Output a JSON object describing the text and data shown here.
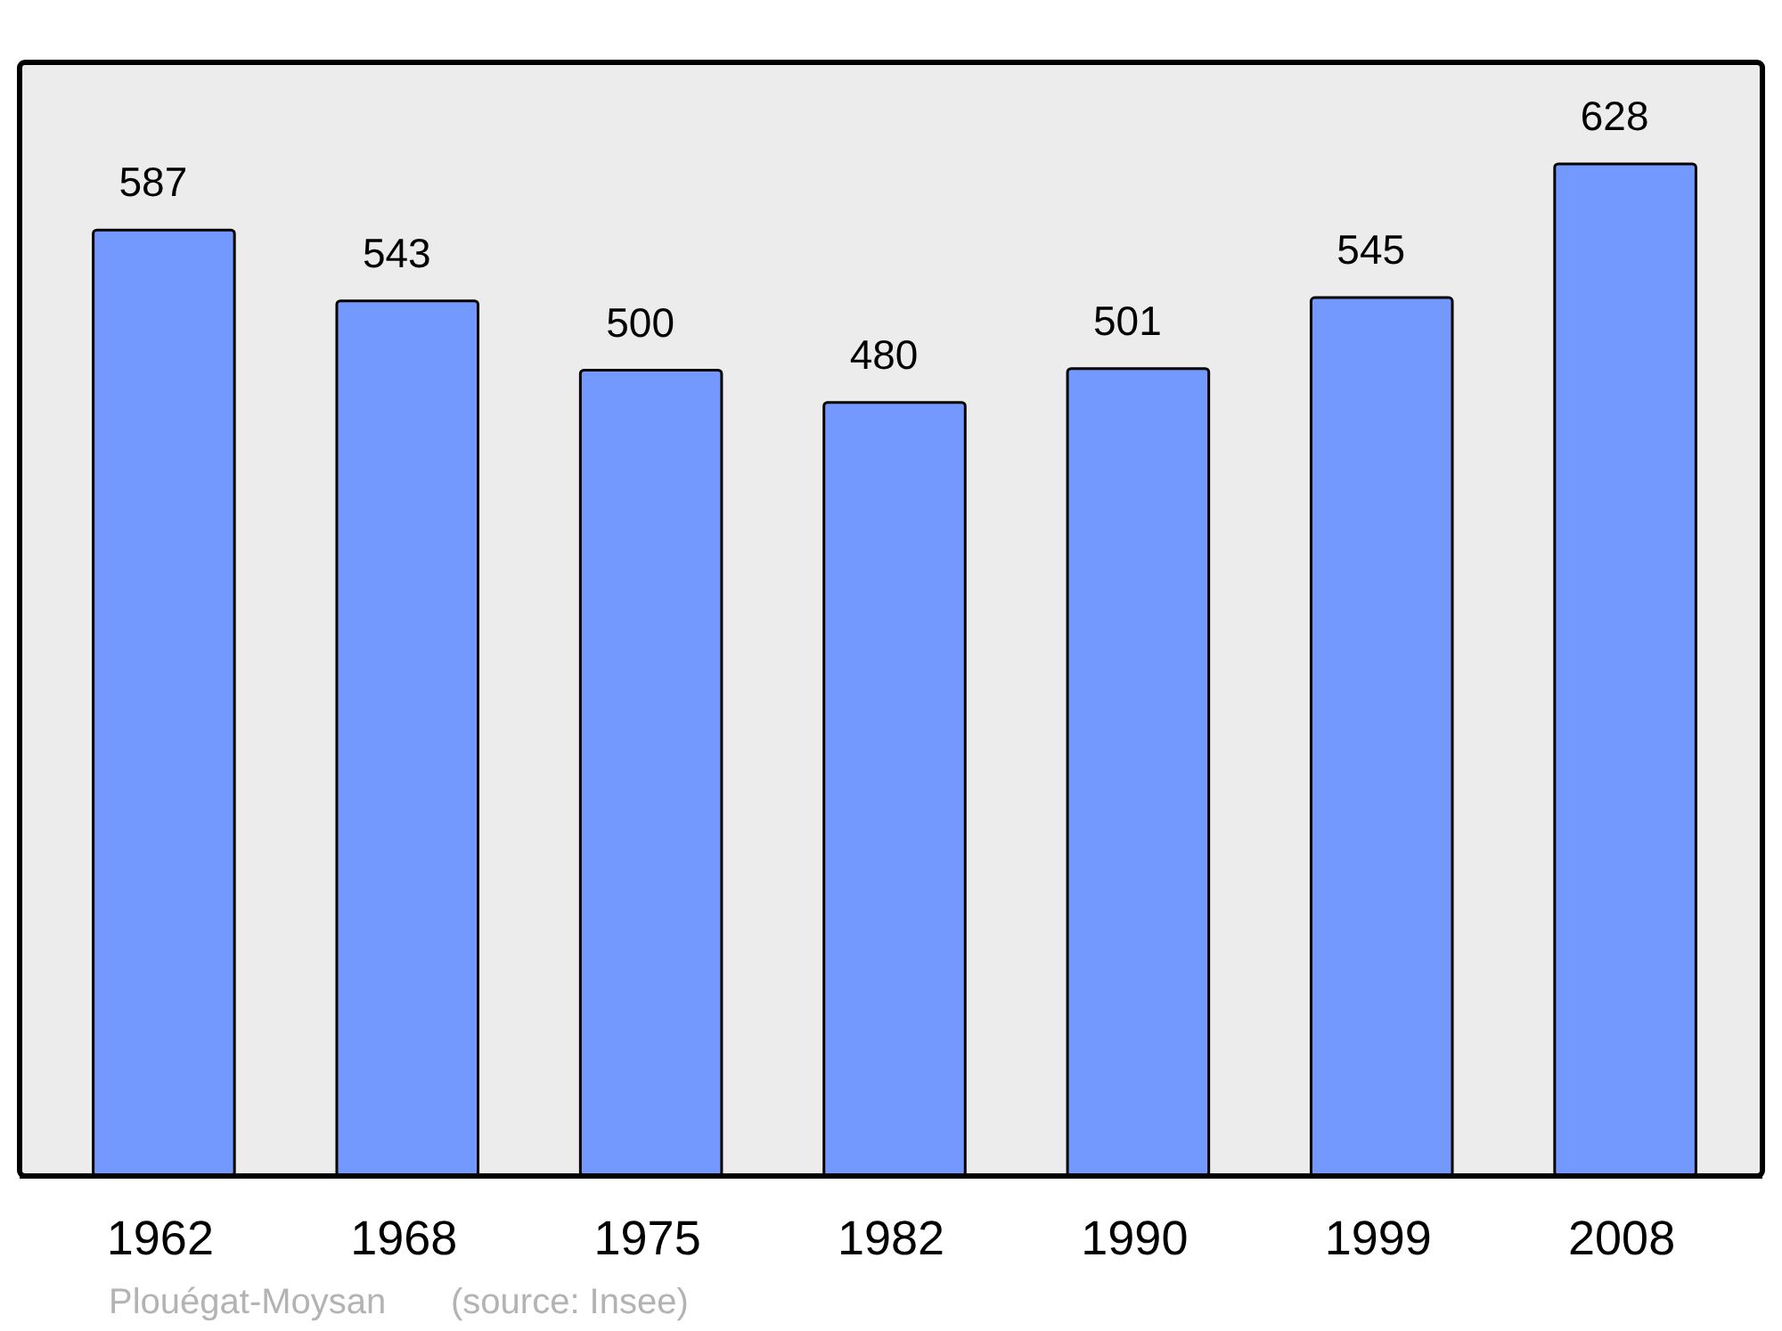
{
  "chart_data": {
    "type": "bar",
    "categories": [
      "1962",
      "1968",
      "1975",
      "1982",
      "1990",
      "1999",
      "2008"
    ],
    "values": [
      587,
      543,
      500,
      480,
      501,
      545,
      628
    ],
    "color": "#7399ff",
    "ylim": [
      0,
      691
    ],
    "data_labels": true,
    "tick_labels": "x",
    "annotations": [
      "Plouégat-Moysan",
      "(source: Insee)"
    ]
  }
}
